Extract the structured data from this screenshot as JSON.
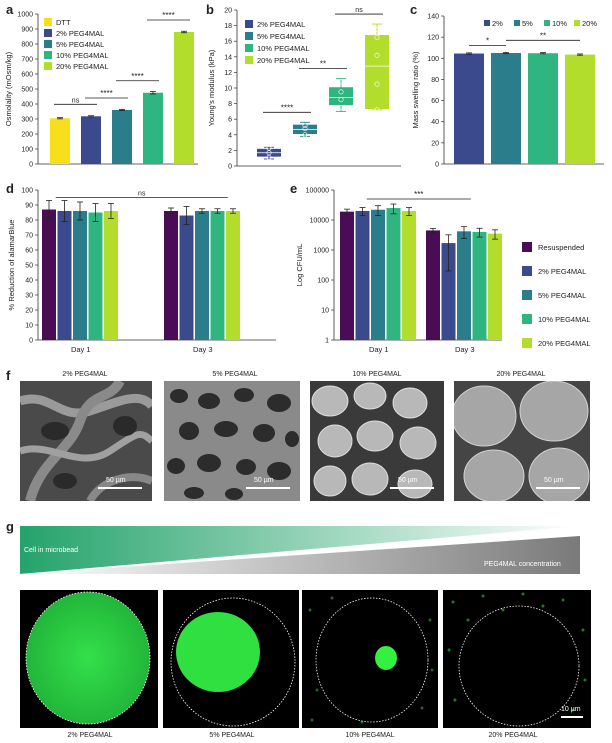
{
  "panels": {
    "a": "a",
    "b": "b",
    "c": "c",
    "d": "d",
    "e": "e",
    "f": "f",
    "g": "g"
  },
  "colors": {
    "DTT": "#f7e01b",
    "2%": "#3b4a8c",
    "5%": "#2b7d8c",
    "10%": "#2fb57f",
    "20%": "#b2dd2c",
    "Resuspended": "#4a0d55"
  },
  "chart_data": [
    {
      "id": "a",
      "type": "bar",
      "ylabel": "Osmolality (mOsm/kg)",
      "ylim": [
        0,
        1000
      ],
      "yticks": [
        0,
        100,
        200,
        300,
        400,
        500,
        600,
        700,
        800,
        900,
        1000
      ],
      "categories": [
        "DTT",
        "2% PEG4MAL",
        "5% PEG4MAL",
        "10% PEG4MAL",
        "20% PEG4MAL"
      ],
      "values": [
        305,
        318,
        360,
        475,
        880
      ],
      "errors": [
        4,
        4,
        4,
        8,
        5
      ],
      "legend": [
        "DTT",
        "2% PEG4MAL",
        "5% PEG4MAL",
        "10% PEG4MAL",
        "20% PEG4MAL"
      ],
      "sig": [
        {
          "from": 0,
          "to": 1,
          "label": "ns"
        },
        {
          "from": 1,
          "to": 2,
          "label": "****"
        },
        {
          "from": 2,
          "to": 3,
          "label": "****"
        },
        {
          "from": 3,
          "to": 4,
          "label": "****"
        }
      ]
    },
    {
      "id": "b",
      "type": "box",
      "ylabel": "Young's modulus (kPa)",
      "ylim": [
        0,
        20
      ],
      "yticks": [
        0,
        2,
        4,
        6,
        8,
        10,
        12,
        14,
        16,
        18,
        20
      ],
      "legend": [
        "2% PEG4MAL",
        "5% PEG4MAL",
        "10% PEG4MAL",
        "20% PEG4MAL"
      ],
      "boxes": [
        {
          "min": 0.9,
          "q1": 1.2,
          "median": 1.7,
          "q3": 2.2,
          "max": 2.4,
          "points": [
            1.1,
            1.7,
            2.3
          ]
        },
        {
          "min": 3.8,
          "q1": 4.1,
          "median": 4.7,
          "q3": 5.3,
          "max": 5.6,
          "points": [
            4.0,
            4.8,
            5.2
          ]
        },
        {
          "min": 7.0,
          "q1": 7.8,
          "median": 8.8,
          "q3": 10.1,
          "max": 11.2,
          "points": [
            7.5,
            8.5,
            9.5,
            10.8
          ]
        },
        {
          "min": 7.2,
          "q1": 7.3,
          "median": 12.8,
          "q3": 16.8,
          "max": 18.2,
          "points": [
            7.2,
            10.5,
            14.2,
            16.5,
            17.5
          ]
        }
      ],
      "sig": [
        {
          "from": 0,
          "to": 1,
          "label": "****"
        },
        {
          "from": 1,
          "to": 2,
          "label": "**"
        },
        {
          "from": 2,
          "to": 3,
          "label": "ns"
        }
      ]
    },
    {
      "id": "c",
      "type": "bar",
      "ylabel": "Mass swelling ratio (%)",
      "ylim": [
        0,
        140
      ],
      "yticks": [
        0,
        20,
        40,
        60,
        80,
        100,
        120,
        140
      ],
      "categories": [
        "2%",
        "5%",
        "10%",
        "20%"
      ],
      "values": [
        104.5,
        105,
        104.8,
        103.5
      ],
      "errors": [
        0.6,
        0.6,
        0.6,
        0.6
      ],
      "legend": [
        "2%",
        "5%",
        "10%",
        "20%"
      ],
      "sig": [
        {
          "from": 0,
          "to": 1,
          "label": "*"
        },
        {
          "from": 1,
          "to": 3,
          "label": "**"
        }
      ]
    },
    {
      "id": "d",
      "type": "bar",
      "ylabel": "% Reduction of alamarBlue",
      "ylim": [
        0,
        100
      ],
      "yticks": [
        0,
        10,
        20,
        30,
        40,
        50,
        60,
        70,
        80,
        90,
        100
      ],
      "categories": [
        "Day 1",
        "Day 3"
      ],
      "series": [
        {
          "name": "Resuspended",
          "values": [
            87,
            86
          ],
          "errors": [
            6,
            2
          ]
        },
        {
          "name": "2% PEG4MAL",
          "values": [
            86,
            83
          ],
          "errors": [
            7,
            6
          ]
        },
        {
          "name": "5% PEG4MAL",
          "values": [
            86,
            86
          ],
          "errors": [
            6,
            1.5
          ]
        },
        {
          "name": "10% PEG4MAL",
          "values": [
            85,
            86
          ],
          "errors": [
            6,
            1.5
          ]
        },
        {
          "name": "20% PEG4MAL",
          "values": [
            86,
            86
          ],
          "errors": [
            5,
            1.5
          ]
        }
      ],
      "sig_label": "ns"
    },
    {
      "id": "e",
      "type": "bar",
      "ylabel": "Log CFU/mL",
      "log": true,
      "ylim": [
        1,
        100000
      ],
      "yticks": [
        "1",
        "10",
        "100",
        "1000",
        "10000",
        "100000"
      ],
      "categories": [
        "Day 1",
        "Day 3"
      ],
      "series": [
        {
          "name": "Resuspended",
          "values": [
            19000,
            4500
          ],
          "errors": [
            4000,
            700
          ]
        },
        {
          "name": "2% PEG4MAL",
          "values": [
            20000,
            1700
          ],
          "errors": [
            6000,
            1500
          ]
        },
        {
          "name": "5% PEG4MAL",
          "values": [
            22000,
            4200
          ],
          "errors": [
            8000,
            1800
          ]
        },
        {
          "name": "10% PEG4MAL",
          "values": [
            25000,
            4000
          ],
          "errors": [
            9000,
            1300
          ]
        },
        {
          "name": "20% PEG4MAL",
          "values": [
            20000,
            3500
          ],
          "errors": [
            6000,
            1200
          ]
        }
      ],
      "legend": [
        "Resuspended",
        "2% PEG4MAL",
        "5% PEG4MAL",
        "10% PEG4MAL",
        "20% PEG4MAL"
      ],
      "sig_label": "***"
    }
  ],
  "sem": [
    {
      "label": "2% PEG4MAL",
      "scale": "50 µm"
    },
    {
      "label": "5% PEG4MAL",
      "scale": "50 µm"
    },
    {
      "label": "10% PEG4MAL",
      "scale": "50 µm"
    },
    {
      "label": "20% PEG4MAL",
      "scale": "50 µm"
    }
  ],
  "gradient": {
    "cell_label": "Cell in microbead",
    "conc_label": "PEG4MAL concentration"
  },
  "fluorescence": [
    {
      "label": "2% PEG4MAL"
    },
    {
      "label": "5% PEG4MAL"
    },
    {
      "label": "10% PEG4MAL"
    },
    {
      "label": "20% PEG4MAL",
      "scale": "10 µm"
    }
  ]
}
